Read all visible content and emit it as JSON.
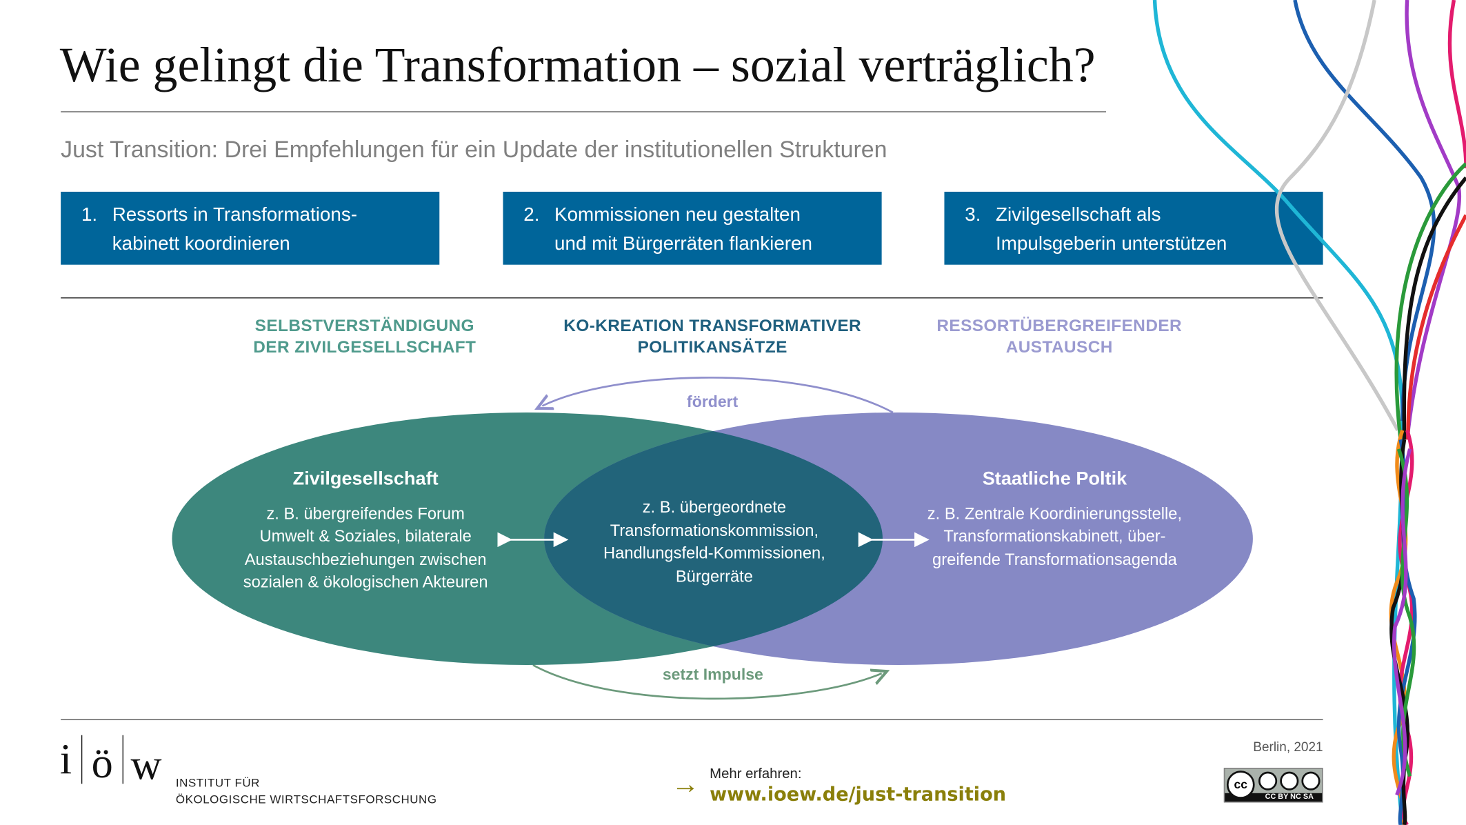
{
  "title": "Wie gelingt die Transformation – sozial verträglich?",
  "subtitle": "Just Transition: Drei Empfehlungen für ein Update der institutionellen Strukturen",
  "recommendations": [
    {
      "number": "1.",
      "line1": "Ressorts in Transformations-",
      "line2": "kabinett koordinieren"
    },
    {
      "number": "2.",
      "line1": "Kommissionen neu gestalten",
      "line2": "und mit Bürgerräten flankieren"
    },
    {
      "number": "3.",
      "line1": "Zivilgesellschaft als",
      "line2": "Impulsgeberin unterstützen"
    }
  ],
  "headings": [
    {
      "line1": "SELBSTVERSTÄNDIGUNG",
      "line2": "DER ZIVILGESELLSCHAFT",
      "color": "#4f9a8c"
    },
    {
      "line1": "KO-KREATION TRANSFORMATIVER",
      "line2": "POLITIKANSÄTZE",
      "color": "#1f5f7e"
    },
    {
      "line1": "RESSORTÜBERGREIFENDER",
      "line2": "AUSTAUSCH",
      "color": "#9a9ad0"
    }
  ],
  "diagram": {
    "top_arrow": "fördert",
    "bottom_arrow": "setzt Impulse",
    "left": {
      "title": "Zivilgesellschaft",
      "lines": [
        "z. B. übergreifendes Forum",
        "Umwelt & Soziales, bilaterale",
        "Austauschbeziehungen zwischen",
        "sozialen & ökologischen Akteuren"
      ],
      "color": "#3d877d"
    },
    "center": {
      "lines": [
        "z. B. übergeordnete",
        "Transformationskommission,",
        "Handlungsfeld-Kommissionen,",
        "Bürgerräte"
      ],
      "color": "#22647a"
    },
    "right": {
      "title": "Staatliche Poltik",
      "lines": [
        "z. B. Zentrale Koordinierungsstelle,",
        "Transformationskabinett, über-",
        "greifende Transformationsagenda"
      ],
      "color": "#8689c5"
    }
  },
  "footer": {
    "logo": "i ö w",
    "institute_line1": "INSTITUT FÜR",
    "institute_line2": "ÖKOLOGISCHE WIRTSCHAFTSFORSCHUNG",
    "more_label": "Mehr erfahren:",
    "link": "www.ioew.de/just-transition",
    "date": "Berlin, 2021",
    "license": "CC BY NC SA",
    "link_color": "#8a7f0a"
  }
}
